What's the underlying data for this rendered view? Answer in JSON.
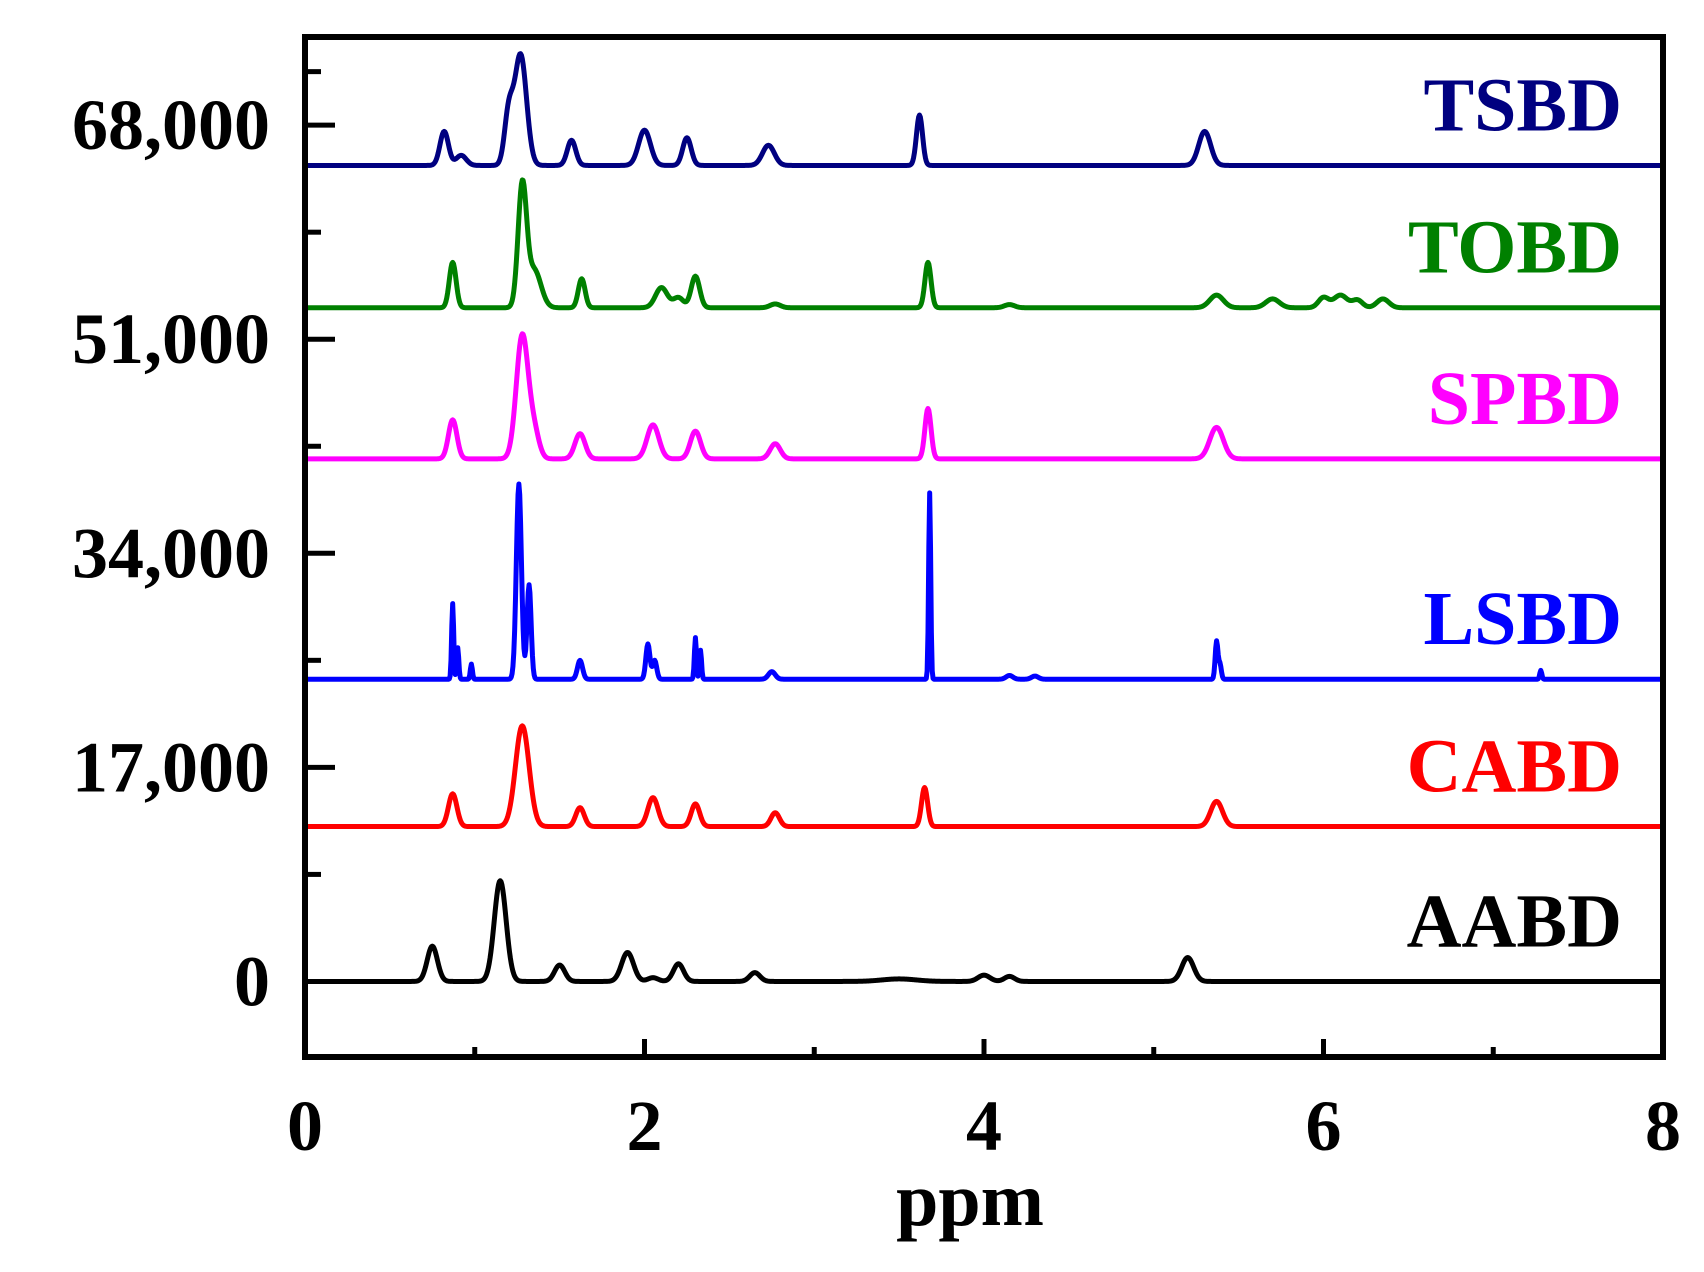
{
  "chart_data": {
    "type": "line",
    "title": "",
    "xlabel": "ppm",
    "ylabel": "",
    "xlim": [
      0,
      8
    ],
    "ylim": [
      -6000,
      75000
    ],
    "xticks": [
      0,
      2,
      4,
      6,
      8
    ],
    "xtick_labels": [
      "0",
      "2",
      "4",
      "6",
      "8"
    ],
    "yticks": [
      0,
      17000,
      34000,
      51000,
      68000
    ],
    "ytick_labels": [
      "0",
      "17,000",
      "34,000",
      "51,000",
      "68,000"
    ],
    "grid": false,
    "series": [
      {
        "name": "AABD",
        "color": "#000000",
        "baseline": 0,
        "peaks": [
          [
            0.75,
            2800,
            0.03
          ],
          [
            1.15,
            8000,
            0.035
          ],
          [
            1.5,
            1300,
            0.03
          ],
          [
            1.9,
            2300,
            0.035
          ],
          [
            2.05,
            300,
            0.03
          ],
          [
            2.2,
            1400,
            0.03
          ],
          [
            2.65,
            700,
            0.03
          ],
          [
            3.5,
            200,
            0.1
          ],
          [
            4.0,
            500,
            0.035
          ],
          [
            4.15,
            400,
            0.03
          ],
          [
            5.2,
            1900,
            0.035
          ]
        ]
      },
      {
        "name": "CABD",
        "color": "#ff0000",
        "baseline": 12300,
        "peaks": [
          [
            0.87,
            2600,
            0.025
          ],
          [
            1.28,
            8000,
            0.04
          ],
          [
            1.62,
            1500,
            0.025
          ],
          [
            2.05,
            2300,
            0.03
          ],
          [
            2.3,
            1800,
            0.025
          ],
          [
            2.77,
            1100,
            0.025
          ],
          [
            3.65,
            3100,
            0.018
          ],
          [
            5.37,
            2000,
            0.035
          ]
        ]
      },
      {
        "name": "LSBD",
        "color": "#0000ff",
        "baseline": 24000,
        "peaks": [
          [
            0.87,
            6000,
            0.006
          ],
          [
            0.9,
            2500,
            0.006
          ],
          [
            0.98,
            1200,
            0.006
          ],
          [
            1.26,
            15500,
            0.015
          ],
          [
            1.32,
            7500,
            0.012
          ],
          [
            1.62,
            1500,
            0.015
          ],
          [
            2.02,
            2800,
            0.012
          ],
          [
            2.06,
            1500,
            0.012
          ],
          [
            2.3,
            3300,
            0.006
          ],
          [
            2.33,
            2300,
            0.006
          ],
          [
            2.75,
            600,
            0.02
          ],
          [
            3.68,
            14800,
            0.006
          ],
          [
            4.15,
            300,
            0.02
          ],
          [
            4.3,
            250,
            0.02
          ],
          [
            5.37,
            3000,
            0.008
          ],
          [
            5.39,
            1200,
            0.008
          ],
          [
            7.28,
            700,
            0.006
          ]
        ]
      },
      {
        "name": "SPBD",
        "color": "#ff00ff",
        "baseline": 41500,
        "peaks": [
          [
            0.87,
            3100,
            0.025
          ],
          [
            1.28,
            9800,
            0.035
          ],
          [
            1.35,
            2000,
            0.03
          ],
          [
            1.62,
            2000,
            0.03
          ],
          [
            2.05,
            2700,
            0.035
          ],
          [
            2.3,
            2200,
            0.03
          ],
          [
            2.77,
            1200,
            0.03
          ],
          [
            3.67,
            4000,
            0.018
          ],
          [
            5.37,
            2500,
            0.04
          ]
        ]
      },
      {
        "name": "TOBD",
        "color": "#008000",
        "baseline": 53500,
        "peaks": [
          [
            0.87,
            3600,
            0.02
          ],
          [
            1.28,
            9500,
            0.025
          ],
          [
            1.35,
            3000,
            0.04
          ],
          [
            1.63,
            2300,
            0.02
          ],
          [
            2.1,
            1600,
            0.035
          ],
          [
            2.2,
            800,
            0.03
          ],
          [
            2.3,
            2500,
            0.025
          ],
          [
            2.77,
            300,
            0.03
          ],
          [
            3.67,
            3600,
            0.018
          ],
          [
            4.15,
            250,
            0.03
          ],
          [
            5.37,
            1000,
            0.04
          ],
          [
            5.7,
            700,
            0.04
          ],
          [
            6.0,
            800,
            0.03
          ],
          [
            6.1,
            1000,
            0.04
          ],
          [
            6.2,
            600,
            0.03
          ],
          [
            6.35,
            700,
            0.035
          ]
        ]
      },
      {
        "name": "TSBD",
        "color": "#000080",
        "baseline": 64800,
        "peaks": [
          [
            0.82,
            2700,
            0.025
          ],
          [
            0.92,
            800,
            0.03
          ],
          [
            1.2,
            4000,
            0.025
          ],
          [
            1.27,
            8800,
            0.035
          ],
          [
            1.57,
            2000,
            0.025
          ],
          [
            2.0,
            2800,
            0.035
          ],
          [
            2.25,
            2200,
            0.025
          ],
          [
            2.73,
            1600,
            0.035
          ],
          [
            3.62,
            4000,
            0.018
          ],
          [
            5.3,
            2700,
            0.035
          ]
        ]
      }
    ]
  }
}
